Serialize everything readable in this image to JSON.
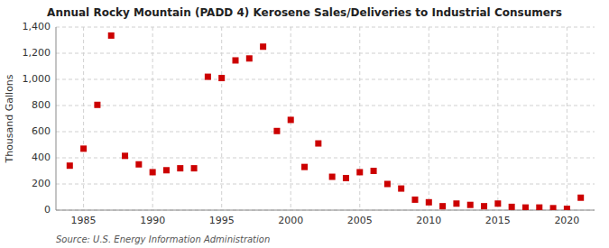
{
  "chart_data": {
    "type": "scatter",
    "title": "Annual Rocky Mountain (PADD 4) Kerosene Sales/Deliveries to Industrial Consumers",
    "ylabel": "Thousand Gallons",
    "source": "Source: U.S. Energy Information Administration",
    "x": [
      1984,
      1985,
      1986,
      1987,
      1988,
      1989,
      1990,
      1991,
      1992,
      1993,
      1994,
      1995,
      1996,
      1997,
      1998,
      1999,
      2000,
      2001,
      2002,
      2003,
      2004,
      2005,
      2006,
      2007,
      2008,
      2009,
      2010,
      2011,
      2012,
      2013,
      2014,
      2015,
      2016,
      2017,
      2018,
      2019,
      2020,
      2021
    ],
    "values": [
      340,
      470,
      805,
      1335,
      415,
      350,
      290,
      305,
      320,
      320,
      1020,
      1010,
      1145,
      1160,
      1250,
      605,
      690,
      330,
      510,
      255,
      245,
      290,
      300,
      200,
      165,
      80,
      60,
      30,
      50,
      40,
      30,
      50,
      25,
      20,
      20,
      15,
      10,
      95
    ],
    "color": "#cc0000",
    "marker": "square",
    "xlim": [
      1983,
      2022
    ],
    "ylim": [
      0,
      1400
    ],
    "xticks": [
      1985,
      1990,
      1995,
      2000,
      2005,
      2010,
      2015,
      2020
    ],
    "yticks": [
      0,
      200,
      400,
      600,
      800,
      {
        "value": 1000,
        "label": "1,000"
      },
      {
        "value": 1200,
        "label": "1,200"
      },
      {
        "value": 1400,
        "label": "1,400"
      }
    ],
    "grid": true
  }
}
